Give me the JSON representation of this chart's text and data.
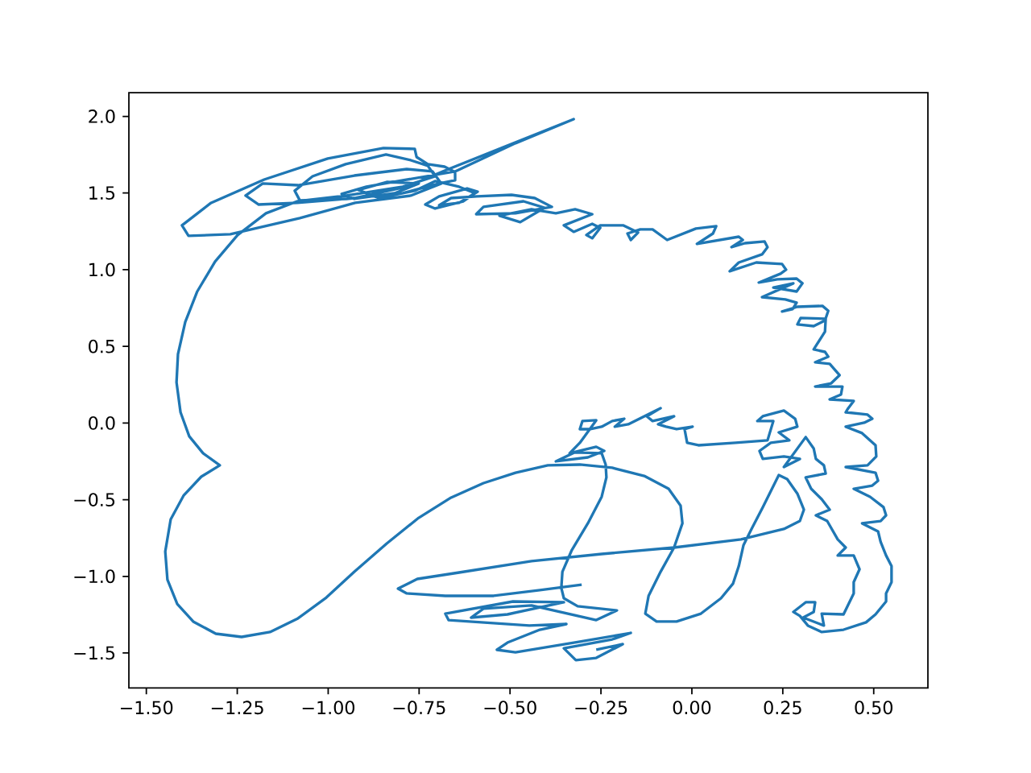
{
  "chart_data": {
    "type": "line",
    "x": [
      -0.303,
      -0.418,
      -0.545,
      -0.678,
      -0.784,
      -0.808,
      -0.755,
      -0.64,
      -0.441,
      -0.248,
      -0.049,
      0.135,
      0.253,
      0.297,
      0.308,
      0.29,
      0.262,
      0.239,
      0.195,
      0.164,
      0.142,
      0.129,
      0.113,
      0.08,
      0.025,
      -0.042,
      -0.097,
      -0.128,
      -0.119,
      -0.086,
      -0.049,
      -0.026,
      -0.031,
      -0.064,
      -0.131,
      -0.219,
      -0.308,
      -0.396,
      -0.485,
      -0.573,
      -0.662,
      -0.751,
      -0.839,
      -0.928,
      -1.005,
      -1.083,
      -1.16,
      -1.238,
      -1.309,
      -1.371,
      -1.415,
      -1.442,
      -1.448,
      -1.433,
      -1.397,
      -1.349,
      -1.298,
      -1.344,
      -1.382,
      -1.406,
      -1.417,
      -1.413,
      -1.393,
      -1.36,
      -1.311,
      -1.249,
      -1.171,
      -1.085,
      -0.95,
      -0.795,
      -0.706,
      -0.726,
      -0.773,
      -0.841,
      -0.952,
      -1.043,
      -1.092,
      -1.078,
      -0.95,
      -0.795,
      -0.695,
      -0.651,
      -0.651,
      -0.68,
      -0.726,
      -0.757,
      -0.762,
      -0.848,
      -1.001,
      -1.176,
      -1.322,
      -1.402,
      -1.384,
      -1.269,
      -1.078,
      -0.926,
      -0.773,
      -0.689,
      -0.713,
      -0.784,
      -0.928,
      -1.083,
      -1.18,
      -1.227,
      -1.191,
      -1.085,
      -0.928,
      -0.784,
      -0.68,
      -0.507,
      -0.325,
      -0.485,
      -0.651,
      -0.795,
      -0.895,
      -0.963,
      -0.928,
      -0.817,
      -0.751,
      -0.839,
      -0.917,
      -0.861,
      -0.762,
      -0.706,
      -0.64,
      -0.596,
      -0.629,
      -0.706,
      -0.733,
      -0.695,
      -0.618,
      -0.589,
      -0.64,
      -0.695,
      -0.662,
      -0.591,
      -0.496,
      -0.432,
      -0.385,
      -0.485,
      -0.593,
      -0.573,
      -0.463,
      -0.405,
      -0.472,
      -0.529,
      -0.441,
      -0.374,
      -0.321,
      -0.274,
      -0.352,
      -0.325,
      -0.274,
      -0.252,
      -0.274,
      -0.29,
      -0.252,
      -0.188,
      -0.148,
      -0.168,
      -0.177,
      -0.142,
      -0.108,
      -0.068,
      0.011,
      0.067,
      0.058,
      0.014,
      0.129,
      0.14,
      0.109,
      0.146,
      0.2,
      0.208,
      0.193,
      0.129,
      0.104,
      0.177,
      0.248,
      0.259,
      0.244,
      0.184,
      0.235,
      0.288,
      0.304,
      0.288,
      0.224,
      0.279,
      0.193,
      0.257,
      0.288,
      0.277,
      0.248,
      0.29,
      0.359,
      0.375,
      0.366,
      0.335,
      0.29,
      0.299,
      0.368,
      0.366,
      0.335,
      0.366,
      0.375,
      0.339,
      0.379,
      0.406,
      0.383,
      0.339,
      0.414,
      0.41,
      0.379,
      0.445,
      0.43,
      0.423,
      0.483,
      0.496,
      0.474,
      0.423,
      0.468,
      0.505,
      0.507,
      0.483,
      0.423,
      0.505,
      0.512,
      0.496,
      0.445,
      0.49,
      0.527,
      0.534,
      0.519,
      0.468,
      0.512,
      0.519,
      0.534,
      0.549,
      0.549,
      0.534,
      0.534,
      0.505,
      0.479,
      0.417,
      0.357,
      0.319,
      0.297,
      0.279,
      0.313,
      0.339,
      0.335,
      0.306,
      0.335,
      0.363,
      0.357,
      0.417,
      0.445,
      0.445,
      0.461,
      0.445,
      0.401,
      0.423,
      0.401,
      0.372,
      0.341,
      0.379,
      0.357,
      0.328,
      0.313,
      0.368,
      0.363,
      0.341,
      0.335,
      0.313,
      0.253,
      0.297,
      0.253,
      0.195,
      0.186,
      0.217,
      0.268,
      0.239,
      0.29,
      0.284,
      0.253,
      0.195,
      0.18,
      0.224,
      0.208,
      0.12,
      0.018,
      -0.013,
      -0.02,
      0.002,
      -0.042,
      -0.071,
      -0.093,
      -0.049,
      -0.108,
      -0.124,
      -0.086,
      -0.175,
      -0.212,
      -0.186,
      -0.219,
      -0.248,
      -0.279,
      -0.308,
      -0.301,
      -0.263,
      -0.308,
      -0.336,
      -0.263,
      -0.241,
      -0.286,
      -0.374,
      -0.323,
      -0.248,
      -0.237,
      -0.235,
      -0.248,
      -0.286,
      -0.33,
      -0.356,
      -0.359,
      -0.352,
      -0.314,
      -0.206,
      -0.263,
      -0.441,
      -0.573,
      -0.607,
      -0.507,
      -0.352,
      -0.492,
      -0.678,
      -0.669,
      -0.447,
      -0.345,
      -0.418,
      -0.507,
      -0.536,
      -0.485,
      -0.308,
      -0.168,
      -0.219,
      -0.352,
      -0.319,
      -0.263,
      -0.19,
      -0.263
    ],
    "series": [
      {
        "color": "#1f77b4",
        "values": [
          -1.054,
          -1.09,
          -1.127,
          -1.127,
          -1.111,
          -1.08,
          -1.017,
          -0.975,
          -0.901,
          -0.854,
          -0.812,
          -0.759,
          -0.691,
          -0.639,
          -0.565,
          -0.46,
          -0.366,
          -0.339,
          -0.549,
          -0.691,
          -0.796,
          -0.933,
          -1.048,
          -1.143,
          -1.243,
          -1.295,
          -1.295,
          -1.243,
          -1.127,
          -0.97,
          -0.812,
          -0.654,
          -0.539,
          -0.429,
          -0.345,
          -0.292,
          -0.271,
          -0.276,
          -0.324,
          -0.392,
          -0.486,
          -0.618,
          -0.786,
          -0.97,
          -1.138,
          -1.274,
          -1.363,
          -1.395,
          -1.374,
          -1.295,
          -1.18,
          -1.022,
          -0.838,
          -0.628,
          -0.471,
          -0.35,
          -0.276,
          -0.197,
          -0.087,
          0.07,
          0.265,
          0.449,
          0.659,
          0.858,
          1.053,
          1.226,
          1.368,
          1.446,
          1.483,
          1.541,
          1.609,
          1.678,
          1.714,
          1.751,
          1.688,
          1.609,
          1.515,
          1.452,
          1.462,
          1.499,
          1.562,
          1.583,
          1.636,
          1.672,
          1.688,
          1.735,
          1.788,
          1.793,
          1.725,
          1.588,
          1.436,
          1.289,
          1.221,
          1.231,
          1.336,
          1.436,
          1.483,
          1.562,
          1.641,
          1.656,
          1.614,
          1.551,
          1.562,
          1.483,
          1.425,
          1.436,
          1.467,
          1.541,
          1.646,
          1.809,
          1.982,
          1.825,
          1.641,
          1.583,
          1.541,
          1.494,
          1.462,
          1.499,
          1.562,
          1.572,
          1.52,
          1.467,
          1.515,
          1.578,
          1.541,
          1.499,
          1.446,
          1.399,
          1.425,
          1.478,
          1.53,
          1.509,
          1.436,
          1.42,
          1.467,
          1.478,
          1.488,
          1.467,
          1.41,
          1.368,
          1.362,
          1.41,
          1.446,
          1.404,
          1.31,
          1.352,
          1.394,
          1.368,
          1.394,
          1.362,
          1.289,
          1.247,
          1.299,
          1.273,
          1.205,
          1.226,
          1.289,
          1.289,
          1.242,
          1.194,
          1.236,
          1.263,
          1.263,
          1.194,
          1.268,
          1.284,
          1.236,
          1.168,
          1.215,
          1.194,
          1.147,
          1.173,
          1.184,
          1.147,
          1.1,
          1.047,
          0.99,
          1.047,
          1.037,
          1.0,
          0.974,
          0.916,
          0.937,
          0.942,
          0.911,
          0.858,
          0.884,
          0.911,
          0.821,
          0.806,
          0.785,
          0.743,
          0.727,
          0.758,
          0.764,
          0.732,
          0.669,
          0.632,
          0.643,
          0.685,
          0.68,
          0.596,
          0.48,
          0.464,
          0.433,
          0.396,
          0.386,
          0.312,
          0.259,
          0.238,
          0.238,
          0.186,
          0.154,
          0.144,
          0.097,
          0.07,
          0.055,
          0.028,
          0.002,
          -0.024,
          -0.066,
          -0.145,
          -0.218,
          -0.276,
          -0.287,
          -0.324,
          -0.376,
          -0.408,
          -0.429,
          -0.481,
          -0.549,
          -0.602,
          -0.639,
          -0.654,
          -0.707,
          -0.775,
          -0.864,
          -0.933,
          -1.038,
          -1.111,
          -1.164,
          -1.248,
          -1.3,
          -1.348,
          -1.363,
          -1.321,
          -1.258,
          -1.232,
          -1.169,
          -1.169,
          -1.232,
          -1.269,
          -1.295,
          -1.321,
          -1.243,
          -1.248,
          -1.111,
          -1.038,
          -0.954,
          -0.864,
          -0.864,
          -0.812,
          -0.759,
          -0.639,
          -0.602,
          -0.565,
          -0.497,
          -0.429,
          -0.355,
          -0.329,
          -0.276,
          -0.234,
          -0.166,
          -0.092,
          -0.287,
          -0.234,
          -0.218,
          -0.234,
          -0.182,
          -0.129,
          -0.113,
          -0.061,
          -0.024,
          0.028,
          0.081,
          0.044,
          0.013,
          0.013,
          -0.113,
          -0.129,
          -0.145,
          -0.129,
          -0.04,
          -0.024,
          -0.04,
          -0.024,
          -0.008,
          0.044,
          0.013,
          0.044,
          0.097,
          -0.008,
          -0.024,
          0.028,
          0.013,
          -0.024,
          -0.04,
          -0.04,
          0.013,
          0.018,
          -0.129,
          -0.197,
          -0.155,
          -0.182,
          -0.224,
          -0.25,
          -0.192,
          -0.197,
          -0.271,
          -0.355,
          -0.481,
          -0.654,
          -0.828,
          -0.97,
          -1.075,
          -1.143,
          -1.195,
          -1.222,
          -1.285,
          -1.19,
          -1.211,
          -1.269,
          -1.248,
          -1.169,
          -1.164,
          -1.243,
          -1.285,
          -1.321,
          -1.311,
          -1.348,
          -1.432,
          -1.479,
          -1.495,
          -1.426,
          -1.369,
          -1.411,
          -1.469,
          -1.547,
          -1.532,
          -1.442,
          -1.479
        ]
      }
    ],
    "xlim": [
      -1.548,
      0.649
    ],
    "ylim": [
      -1.728,
      2.154
    ],
    "xticks": [
      {
        "value": -1.5,
        "label": "−1.50"
      },
      {
        "value": -1.25,
        "label": "−1.25"
      },
      {
        "value": -1.0,
        "label": "−1.00"
      },
      {
        "value": -0.75,
        "label": "−0.75"
      },
      {
        "value": -0.5,
        "label": "−0.50"
      },
      {
        "value": -0.25,
        "label": "−0.25"
      },
      {
        "value": 0,
        "label": "0.00"
      },
      {
        "value": 0.25,
        "label": "0.25"
      },
      {
        "value": 0.5,
        "label": "0.50"
      }
    ],
    "yticks": [
      {
        "value": -1.5,
        "label": "−1.5"
      },
      {
        "value": -1.0,
        "label": "−1.0"
      },
      {
        "value": -0.5,
        "label": "−0.5"
      },
      {
        "value": 0,
        "label": "0.0"
      },
      {
        "value": 0.5,
        "label": "0.5"
      },
      {
        "value": 1.0,
        "label": "1.0"
      },
      {
        "value": 1.5,
        "label": "1.5"
      },
      {
        "value": 2.0,
        "label": "2.0"
      }
    ],
    "line_style": "solid"
  }
}
